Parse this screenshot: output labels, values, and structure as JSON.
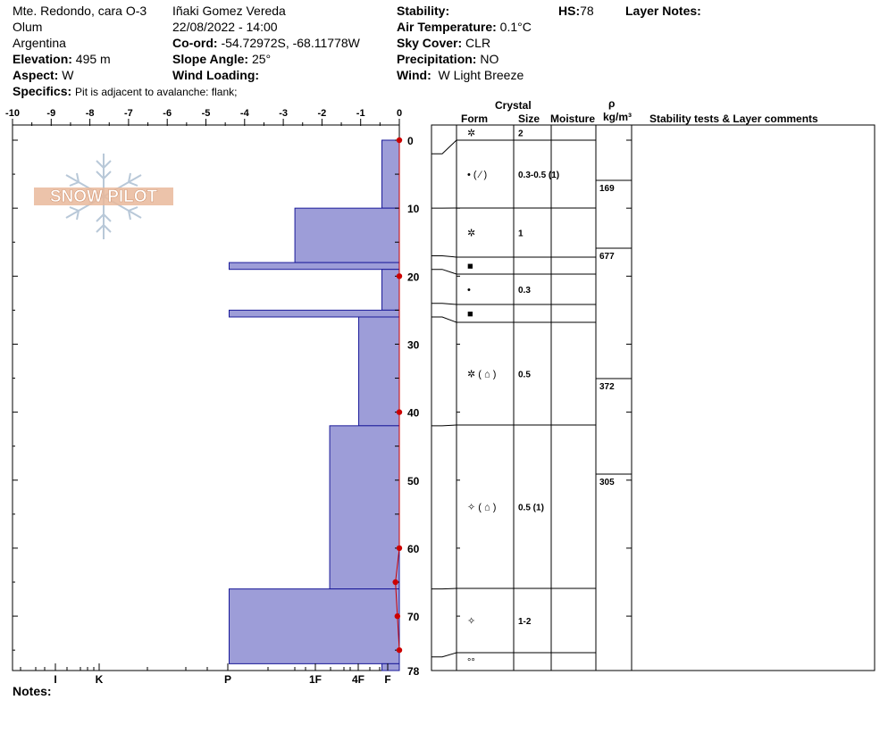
{
  "header": {
    "location": "Mte. Redondo, cara O-3",
    "region": "Olum",
    "country": "Argentina",
    "elevation_label": "Elevation:",
    "elevation": "495 m",
    "aspect_label": "Aspect:",
    "aspect": "W",
    "observer": "Iñaki Gomez Vereda",
    "datetime": "22/08/2022 - 14:00",
    "coord_label": "Co-ord:",
    "coord": "-54.72972S, -68.11778W",
    "slope_label": "Slope Angle:",
    "slope": "25°",
    "wind_loading_label": "Wind Loading:",
    "stability_label": "Stability:",
    "air_temp_label": "Air Temperature:",
    "air_temp": "0.1°C",
    "sky_label": "Sky Cover:",
    "sky": "CLR",
    "precip_label": "Precipitation:",
    "precip": "NO",
    "wind_label": "Wind:",
    "wind": "W Light Breeze",
    "hs_label": "HS:",
    "hs": "78",
    "layer_notes_label": "Layer Notes:",
    "specifics_label": "Specifics:",
    "specifics": "Pit is adjacent to avalanche: flank;",
    "notes_label": "Notes:",
    "logo_text": "SNOW PILOT"
  },
  "table_headers": {
    "crystal": "Crystal",
    "form": "Form",
    "size": "Size",
    "moisture": "Moisture",
    "rho": "ρ",
    "density_unit": "kg/m³",
    "comments": "Stability tests & Layer comments"
  },
  "chart_data": {
    "type": "snow_profile",
    "temperature_axis": {
      "min": -10,
      "max": 0,
      "ticks": [
        "-10",
        "-9",
        "-8",
        "-7",
        "-6",
        "-5",
        "-4",
        "-3",
        "-2",
        "-1",
        "0"
      ]
    },
    "depth_axis": {
      "min": 0,
      "max": 78,
      "ticks": [
        "0",
        "10",
        "20",
        "30",
        "40",
        "50",
        "60",
        "70",
        "78"
      ]
    },
    "hardness_axis": [
      "I",
      "K",
      "P",
      "1F",
      "4F",
      "F"
    ],
    "hardness_profile": [
      {
        "top": 0,
        "bottom": 10,
        "hardness": -0.45
      },
      {
        "top": 10,
        "bottom": 18,
        "hardness": -2.7
      },
      {
        "top": 18,
        "bottom": 19,
        "hardness": -4.4
      },
      {
        "top": 19,
        "bottom": 25,
        "hardness": -0.45
      },
      {
        "top": 25,
        "bottom": 26,
        "hardness": -4.4
      },
      {
        "top": 26,
        "bottom": 42,
        "hardness": -1.05
      },
      {
        "top": 42,
        "bottom": 66,
        "hardness": -1.8
      },
      {
        "top": 66,
        "bottom": 77,
        "hardness": -4.4
      },
      {
        "top": 77,
        "bottom": 78,
        "hardness": -0.45
      }
    ],
    "temperature_profile": [
      {
        "depth": 0,
        "temp": 0
      },
      {
        "depth": 20,
        "temp": 0
      },
      {
        "depth": 40,
        "temp": 0
      },
      {
        "depth": 60,
        "temp": 0
      },
      {
        "depth": 65,
        "temp": -0.1
      },
      {
        "depth": 70,
        "temp": -0.05
      },
      {
        "depth": 75,
        "temp": 0
      }
    ],
    "layers": [
      {
        "top": 0,
        "bottom": 2,
        "form": "✲",
        "size": "2"
      },
      {
        "top": 2,
        "bottom": 10,
        "form": "•  ( ⁄ )",
        "size": "0.3-0.5 (1)"
      },
      {
        "top": 10,
        "bottom": 17,
        "form": "✲",
        "size": "1"
      },
      {
        "top": 17,
        "bottom": 19,
        "form": "■",
        "size": ""
      },
      {
        "top": 19,
        "bottom": 24,
        "form": "•",
        "size": "0.3"
      },
      {
        "top": 24,
        "bottom": 26,
        "form": "■",
        "size": ""
      },
      {
        "top": 26,
        "bottom": 42,
        "form": "✲ ( ⌂ )",
        "size": "0.5"
      },
      {
        "top": 42,
        "bottom": 66,
        "form": "✧ ( ⌂ )",
        "size": "0.5 (1)"
      },
      {
        "top": 66,
        "bottom": 76,
        "form": "✧",
        "size": "1-2"
      },
      {
        "top": 76,
        "bottom": 78,
        "form": "°°",
        "size": ""
      }
    ],
    "densities": [
      {
        "depth": 6,
        "value": "169"
      },
      {
        "depth": 16,
        "value": "677"
      },
      {
        "depth": 35,
        "value": "372"
      },
      {
        "depth": 49,
        "value": "305"
      }
    ],
    "colors": {
      "hardness_fill": "#9d9dd8",
      "hardness_stroke": "#1a1a99",
      "temp_line": "#cc0000"
    }
  }
}
